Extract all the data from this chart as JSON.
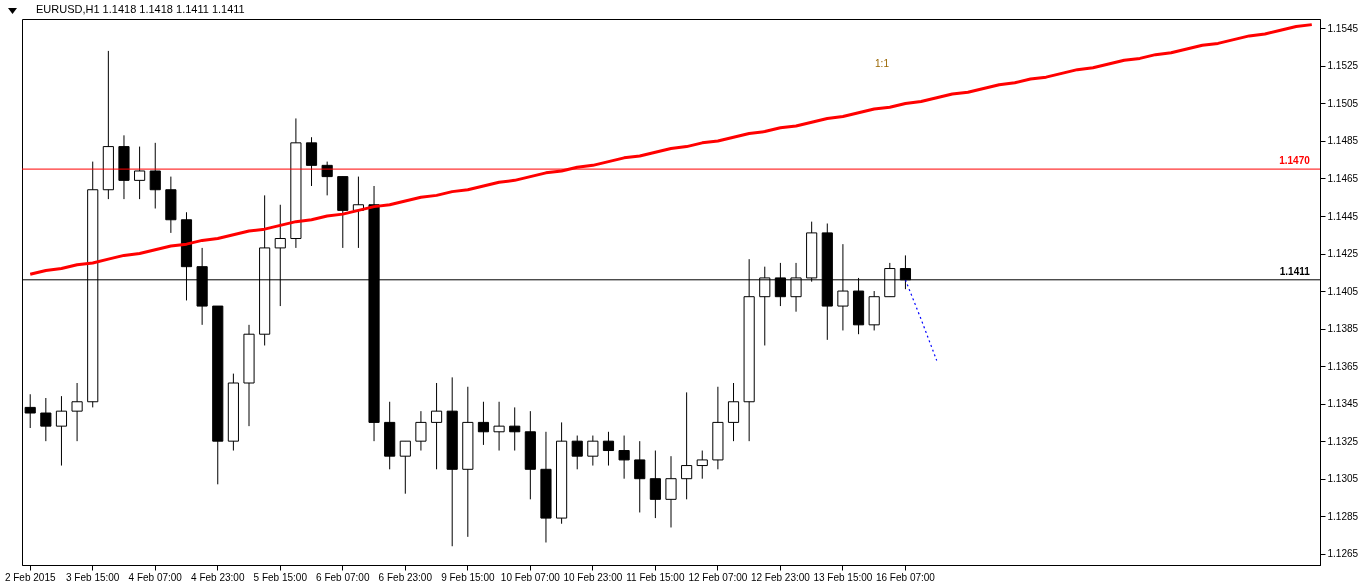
{
  "chart_data": {
    "type": "candlestick",
    "title": "EURUSD,H1  1.1418 1.1418 1.1411 1.1411",
    "categories": [
      "2 Feb 2015",
      null,
      null,
      null,
      "3 Feb 15:00",
      null,
      null,
      null,
      "4 Feb 07:00",
      null,
      null,
      null,
      "4 Feb 23:00",
      null,
      null,
      null,
      "5 Feb 15:00",
      null,
      null,
      null,
      "6 Feb 07:00",
      null,
      null,
      null,
      "6 Feb 23:00",
      null,
      null,
      null,
      "9 Feb 15:00",
      null,
      null,
      null,
      "10 Feb 07:00",
      null,
      null,
      null,
      "10 Feb 23:00",
      null,
      null,
      null,
      "11 Feb 15:00",
      null,
      null,
      null,
      "12 Feb 07:00",
      null,
      null,
      null,
      "12 Feb 23:00",
      null,
      null,
      null,
      "13 Feb 15:00",
      null,
      null,
      null,
      "16 Feb 07:00",
      null,
      null,
      null,
      null,
      null,
      null,
      null,
      null,
      null,
      null,
      null,
      null,
      null,
      null,
      null,
      null,
      null,
      null,
      null,
      null,
      null,
      null,
      null,
      null,
      null,
      null
    ],
    "ohlc": [
      [
        1.1343,
        1.135,
        1.1332,
        1.134
      ],
      [
        1.134,
        1.1348,
        1.1325,
        1.1333
      ],
      [
        1.1333,
        1.1349,
        1.1312,
        1.1341
      ],
      [
        1.1341,
        1.1356,
        1.1325,
        1.1346
      ],
      [
        1.1346,
        1.1474,
        1.1343,
        1.1459
      ],
      [
        1.1459,
        1.1533,
        1.1454,
        1.1482
      ],
      [
        1.1482,
        1.1488,
        1.1454,
        1.1464
      ],
      [
        1.1464,
        1.1482,
        1.1454,
        1.1469
      ],
      [
        1.1469,
        1.1484,
        1.1449,
        1.1459
      ],
      [
        1.1459,
        1.1466,
        1.1436,
        1.1443
      ],
      [
        1.1443,
        1.1447,
        1.14,
        1.1418
      ],
      [
        1.1418,
        1.1428,
        1.1387,
        1.1397
      ],
      [
        1.1397,
        1.1397,
        1.1302,
        1.1325
      ],
      [
        1.1325,
        1.1361,
        1.132,
        1.1356
      ],
      [
        1.1356,
        1.1387,
        1.1333,
        1.1382
      ],
      [
        1.1382,
        1.1456,
        1.1376,
        1.1428
      ],
      [
        1.1428,
        1.1451,
        1.1397,
        1.1433
      ],
      [
        1.1433,
        1.1497,
        1.1428,
        1.1484
      ],
      [
        1.1484,
        1.1487,
        1.1461,
        1.1472
      ],
      [
        1.1472,
        1.1474,
        1.1456,
        1.1466
      ],
      [
        1.1466,
        1.1466,
        1.1428,
        1.1448
      ],
      [
        1.1448,
        1.1466,
        1.1428,
        1.1451
      ],
      [
        1.1451,
        1.1461,
        1.1325,
        1.1335
      ],
      [
        1.1335,
        1.1346,
        1.131,
        1.1317
      ],
      [
        1.1317,
        1.1325,
        1.1297,
        1.1325
      ],
      [
        1.1325,
        1.1341,
        1.132,
        1.1335
      ],
      [
        1.1335,
        1.1356,
        1.131,
        1.1341
      ],
      [
        1.1341,
        1.1359,
        1.1269,
        1.131
      ],
      [
        1.131,
        1.1354,
        1.1274,
        1.1335
      ],
      [
        1.1335,
        1.1346,
        1.1323,
        1.133
      ],
      [
        1.133,
        1.1346,
        1.132,
        1.1333
      ],
      [
        1.1333,
        1.1343,
        1.132,
        1.133
      ],
      [
        1.133,
        1.1341,
        1.1294,
        1.131
      ],
      [
        1.131,
        1.133,
        1.1271,
        1.1284
      ],
      [
        1.1284,
        1.1335,
        1.1281,
        1.1325
      ],
      [
        1.1325,
        1.1328,
        1.131,
        1.1317
      ],
      [
        1.1317,
        1.1328,
        1.1312,
        1.1325
      ],
      [
        1.1325,
        1.133,
        1.1312,
        1.132
      ],
      [
        1.132,
        1.1328,
        1.1305,
        1.1315
      ],
      [
        1.1315,
        1.1325,
        1.1287,
        1.1305
      ],
      [
        1.1305,
        1.132,
        1.1284,
        1.1294
      ],
      [
        1.1294,
        1.1317,
        1.1279,
        1.1305
      ],
      [
        1.1305,
        1.1351,
        1.1294,
        1.1312
      ],
      [
        1.1312,
        1.132,
        1.1305,
        1.1315
      ],
      [
        1.1315,
        1.1354,
        1.131,
        1.1335
      ],
      [
        1.1335,
        1.1356,
        1.1325,
        1.1346
      ],
      [
        1.1346,
        1.1422,
        1.1325,
        1.1402
      ],
      [
        1.1402,
        1.1418,
        1.1376,
        1.1412
      ],
      [
        1.1412,
        1.142,
        1.1397,
        1.1402
      ],
      [
        1.1402,
        1.142,
        1.1394,
        1.1412
      ],
      [
        1.1412,
        1.1442,
        1.141,
        1.1436
      ],
      [
        1.1436,
        1.1441,
        1.1379,
        1.1397
      ],
      [
        1.1397,
        1.143,
        1.1384,
        1.1405
      ],
      [
        1.1405,
        1.1412,
        1.1382,
        1.1387
      ],
      [
        1.1387,
        1.1405,
        1.1384,
        1.1402
      ],
      [
        1.1402,
        1.142,
        1.1402,
        1.1417
      ],
      [
        1.1417,
        1.1424,
        1.1406,
        1.1411
      ],
      null,
      null,
      null,
      null,
      null,
      null,
      null,
      null,
      null,
      null,
      null,
      null,
      null,
      null,
      null,
      null,
      null,
      null,
      null,
      null,
      null,
      null,
      null,
      null,
      null,
      null
    ],
    "series": [
      {
        "type": "line",
        "color": "#ff0000",
        "values": [
          1.1414,
          1.1416,
          1.1417,
          1.1419,
          1.142,
          1.1422,
          1.1424,
          1.1425,
          1.1427,
          1.1429,
          1.143,
          1.1432,
          1.1433,
          1.1435,
          1.1437,
          1.1438,
          1.144,
          1.1442,
          1.1443,
          1.1445,
          1.1446,
          1.1448,
          1.145,
          1.1451,
          1.1453,
          1.1455,
          1.1456,
          1.1458,
          1.1459,
          1.1461,
          1.1463,
          1.1464,
          1.1466,
          1.1468,
          1.1469,
          1.1471,
          1.1472,
          1.1474,
          1.1476,
          1.1477,
          1.1479,
          1.1481,
          1.1482,
          1.1484,
          1.1485,
          1.1487,
          1.1489,
          1.149,
          1.1492,
          1.1493,
          1.1495,
          1.1497,
          1.1498,
          1.15,
          1.1502,
          1.1503,
          1.1505,
          1.1506,
          1.1508,
          1.151,
          1.1511,
          1.1513,
          1.1515,
          1.1516,
          1.1518,
          1.1519,
          1.1521,
          1.1523,
          1.1524,
          1.1526,
          1.1528,
          1.1529,
          1.1531,
          1.1532,
          1.1534,
          1.1536,
          1.1537,
          1.1539,
          1.1541,
          1.1542,
          1.1544,
          1.1546,
          1.1547
        ]
      },
      {
        "type": "line",
        "color": "#0000ff",
        "line_style": "dotted",
        "values": [
          null,
          null,
          null,
          null,
          null,
          null,
          null,
          null,
          null,
          null,
          null,
          null,
          null,
          null,
          null,
          null,
          null,
          null,
          null,
          null,
          null,
          null,
          null,
          null,
          null,
          null,
          null,
          null,
          null,
          null,
          null,
          null,
          null,
          null,
          null,
          null,
          null,
          null,
          null,
          null,
          null,
          null,
          null,
          null,
          null,
          null,
          null,
          null,
          null,
          null,
          null,
          null,
          null,
          null,
          null,
          null,
          1.1411,
          1.139,
          1.1368,
          null,
          null,
          null,
          null,
          null,
          null,
          null,
          null,
          null,
          null,
          null,
          null,
          null,
          null,
          null,
          null,
          null,
          null,
          null,
          null,
          null,
          null,
          null,
          null
        ]
      }
    ],
    "ylim": [
      1.1259,
      1.155
    ],
    "yticks": [
      1.1265,
      1.1285,
      1.1305,
      1.1325,
      1.1345,
      1.1365,
      1.1385,
      1.1405,
      1.1425,
      1.1445,
      1.1465,
      1.1485,
      1.1505,
      1.1525,
      1.1545
    ],
    "ref_lines": [
      {
        "axis": "y",
        "value": 1.147,
        "label": "1.1470",
        "color": "#ff0000"
      },
      {
        "axis": "y",
        "value": 1.1411,
        "label": "1.1411",
        "color": "#000000"
      }
    ],
    "annotations": [
      "1:1"
    ],
    "grid": false
  }
}
